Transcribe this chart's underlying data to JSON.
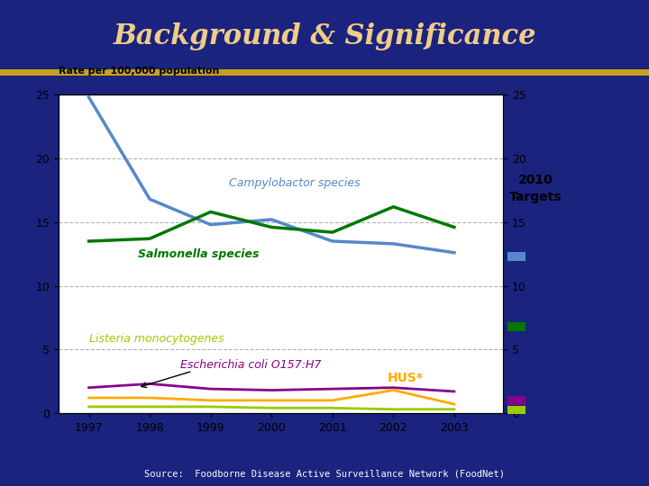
{
  "title": "Background & Significance",
  "subtitle": "Rate per 100,000 population",
  "source": "Source:  Foodborne Disease Active Surveillance Network (FoodNet)",
  "background_color": "#1a237e",
  "chart_bg": "#ffffff",
  "title_color": "#f0cc88",
  "years": [
    1997,
    1998,
    1999,
    2000,
    2001,
    2002,
    2003
  ],
  "campylobacter": [
    24.8,
    16.8,
    14.8,
    15.2,
    13.5,
    13.3,
    12.6
  ],
  "salmonella": [
    13.5,
    13.7,
    15.8,
    14.6,
    14.2,
    16.2,
    14.6
  ],
  "listeria": [
    0.5,
    0.5,
    0.5,
    0.4,
    0.4,
    0.3,
    0.3
  ],
  "ecoli": [
    2.0,
    2.3,
    1.9,
    1.8,
    1.9,
    2.0,
    1.7
  ],
  "hus": [
    1.2,
    1.2,
    1.0,
    1.0,
    1.0,
    1.8,
    0.7
  ],
  "campylobacter_color": "#5588cc",
  "salmonella_color": "#007700",
  "listeria_color": "#99cc00",
  "ecoli_color": "#880088",
  "hus_color": "#ffaa00",
  "target_campylobacter": 12.3,
  "target_salmonella": 6.8,
  "target_ecoli": 1.0,
  "target_listeria": 0.25,
  "target_campylobacter_color": "#5588cc",
  "target_salmonella_color": "#007700",
  "target_ecoli_color": "#880088",
  "target_listeria_color": "#99cc00",
  "ylim": [
    0,
    25
  ],
  "yticks": [
    0,
    5,
    10,
    15,
    20,
    25
  ],
  "xticks": [
    1997,
    1998,
    1999,
    2000,
    2001,
    2002,
    2003
  ],
  "separator_color": "#c8a020",
  "separator_y": 0.845
}
